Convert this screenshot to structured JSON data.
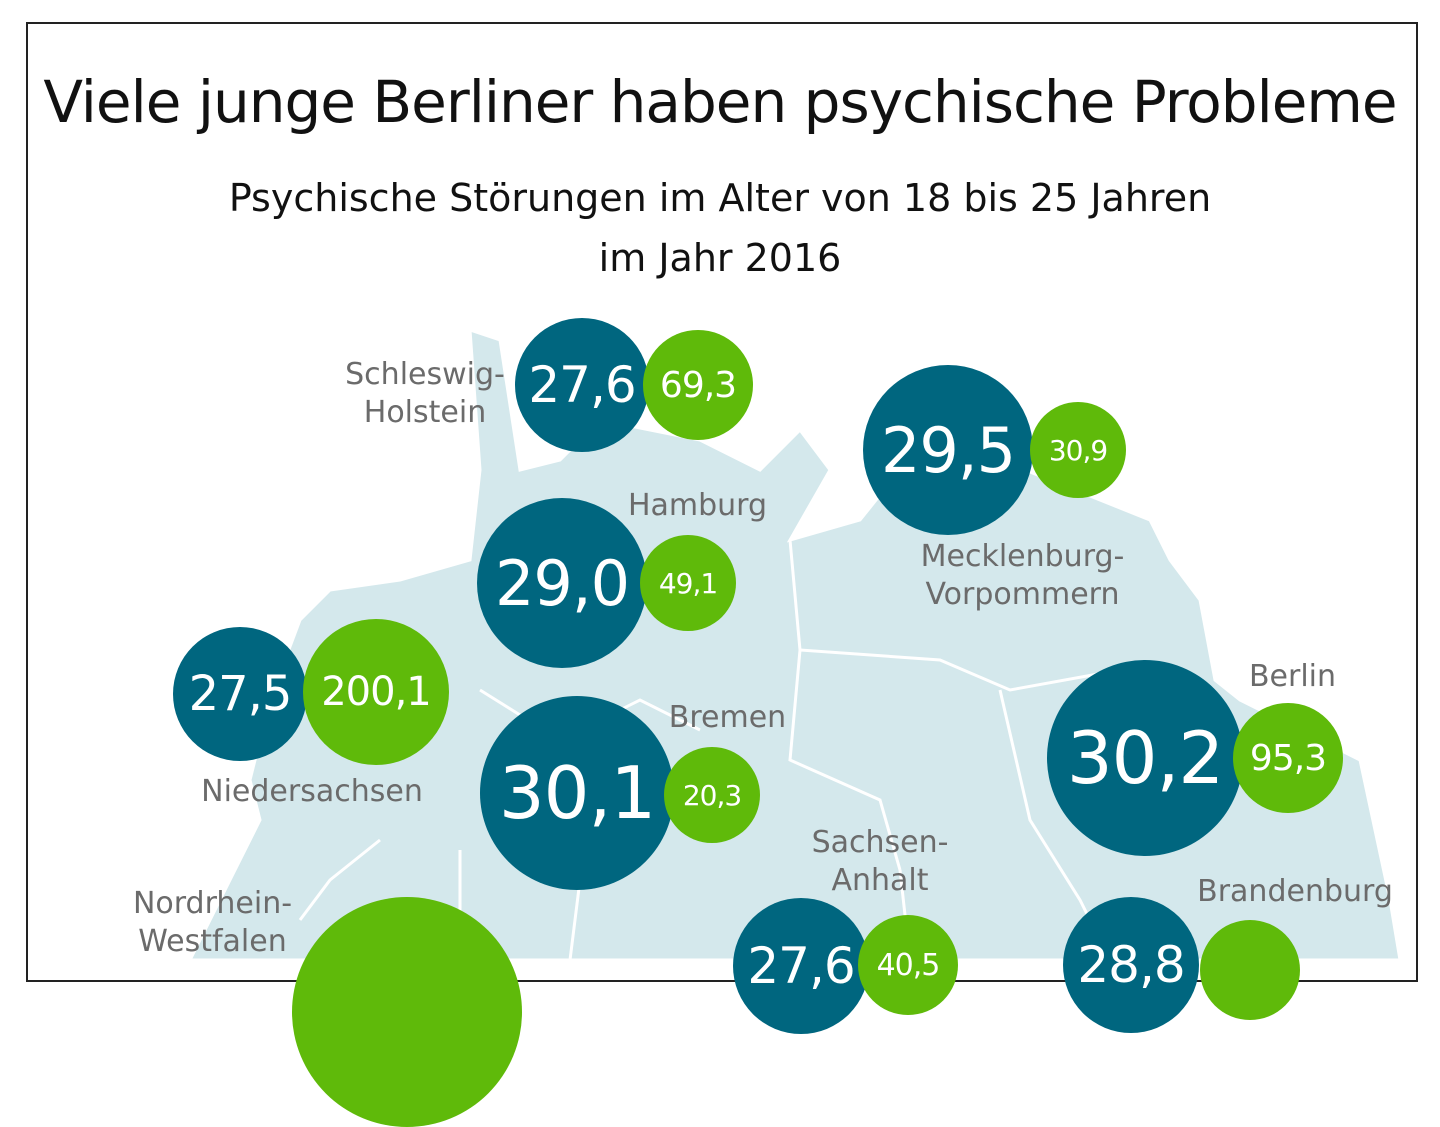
{
  "title": "Viele junge Berliner haben psychische Probleme",
  "subtitle_line1": "Psychische Störungen im Alter von 18 bis 25 Jahren",
  "subtitle_line2": "im Jahr 2016",
  "colors": {
    "dark_bubble": "#00667f",
    "green_bubble": "#5fba0a",
    "map": "#d4e8ec",
    "label": "#6b6b6b"
  },
  "states": [
    {
      "name_line1": "Schleswig-",
      "name_line2": "Holstein",
      "dark": "27,6",
      "green": "69,3"
    },
    {
      "name_line1": "Mecklenburg-",
      "name_line2": "Vorpommern",
      "dark": "29,5",
      "green": "30,9"
    },
    {
      "name_line1": "Hamburg",
      "name_line2": "",
      "dark": "29,0",
      "green": "49,1"
    },
    {
      "name_line1": "Niedersachsen",
      "name_line2": "",
      "dark": "27,5",
      "green": "200,1"
    },
    {
      "name_line1": "Bremen",
      "name_line2": "",
      "dark": "30,1",
      "green": "20,3"
    },
    {
      "name_line1": "Berlin",
      "name_line2": "",
      "dark": "30,2",
      "green": "95,3"
    },
    {
      "name_line1": "Nordrhein-",
      "name_line2": "Westfalen",
      "dark": "",
      "green": ""
    },
    {
      "name_line1": "Sachsen-",
      "name_line2": "Anhalt",
      "dark": "27,6",
      "green": "40,5"
    },
    {
      "name_line1": "Brandenburg",
      "name_line2": "",
      "dark": "28,8",
      "green": ""
    }
  ]
}
